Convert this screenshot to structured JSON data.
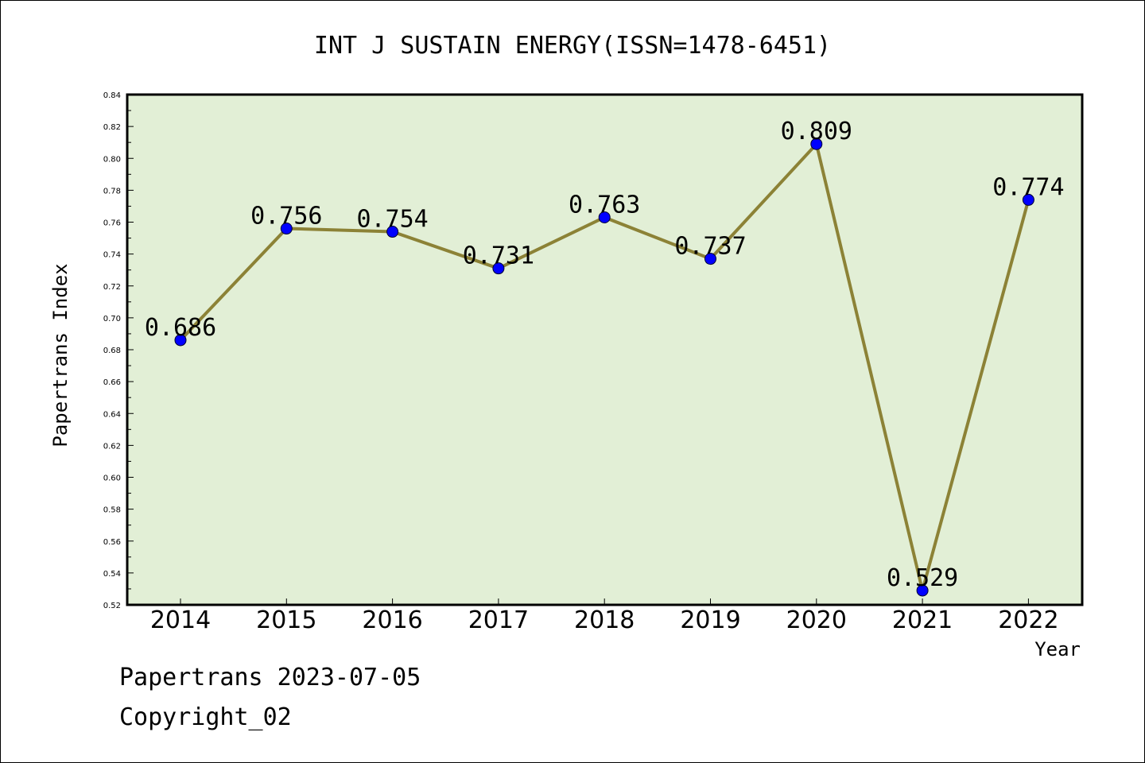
{
  "chart_data": {
    "type": "line",
    "title": "INT J SUSTAIN ENERGY(ISSN=1478-6451)",
    "xlabel": "Year",
    "ylabel": "Papertrans Index",
    "categories": [
      "2014",
      "2015",
      "2016",
      "2017",
      "2018",
      "2019",
      "2020",
      "2021",
      "2022"
    ],
    "values": [
      0.686,
      0.756,
      0.754,
      0.731,
      0.763,
      0.737,
      0.809,
      0.529,
      0.774
    ],
    "data_labels": [
      "0.686",
      "0.756",
      "0.754",
      "0.731",
      "0.763",
      "0.737",
      "0.809",
      "0.529",
      "0.774"
    ],
    "ylim": [
      0.52,
      0.84
    ],
    "yticks": [
      "0.52",
      "0.54",
      "0.56",
      "0.58",
      "0.60",
      "0.62",
      "0.64",
      "0.66",
      "0.68",
      "0.70",
      "0.72",
      "0.74",
      "0.76",
      "0.78",
      "0.80",
      "0.82",
      "0.84"
    ],
    "grid": false,
    "colors": {
      "plot_background": "#e2efd6",
      "line": "#8c8236",
      "marker": "#0000ff"
    }
  },
  "footer": {
    "line1": "Papertrans 2023-07-05",
    "line2": "Copyright_02"
  }
}
